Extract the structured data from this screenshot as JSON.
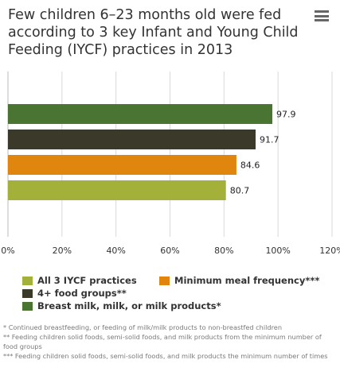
{
  "header": {
    "title": "Few children 6–23 months old were fed according to 3 key Infant and Young Child Feeding (IYCF) practices in 2013",
    "menu_icon": "hamburger-menu-icon"
  },
  "chart_data": {
    "type": "bar",
    "orientation": "horizontal",
    "categories": [
      "Breast milk, milk, or milk products*",
      "4+ food groups**",
      "Minimum meal frequency***",
      "All 3 IYCF practices"
    ],
    "values": [
      97.9,
      91.7,
      84.6,
      80.7
    ],
    "colors": [
      "#4a7432",
      "#3b3a2a",
      "#e0850e",
      "#a3b03a"
    ],
    "data_labels": [
      "97.9",
      "91.7",
      "84.6",
      "80.7"
    ],
    "xlim": [
      0,
      120
    ],
    "x_ticks": [
      0,
      20,
      40,
      60,
      80,
      100,
      120
    ],
    "x_tick_labels": [
      "0%",
      "20%",
      "40%",
      "60%",
      "80%",
      "100%",
      "120%"
    ],
    "grid": true,
    "legend_position": "bottom"
  },
  "legend": {
    "items": [
      {
        "label": "All 3 IYCF practices",
        "color": "#a3b03a"
      },
      {
        "label": "Minimum meal frequency***",
        "color": "#e0850e"
      },
      {
        "label": "4+ food groups**",
        "color": "#3b3a2a"
      },
      {
        "label": "Breast milk, milk, or milk products*",
        "color": "#4a7432"
      }
    ]
  },
  "footnotes": [
    "* Continued breastfeeding, or feeding of milk/milk products to non-breastfed children",
    "** Feeding children solid foods, semi-solid foods, and milk products from the minimum number of food groups",
    "*** Feeding children solid foods, semi-solid foods, and milk products the minimum number of times"
  ]
}
